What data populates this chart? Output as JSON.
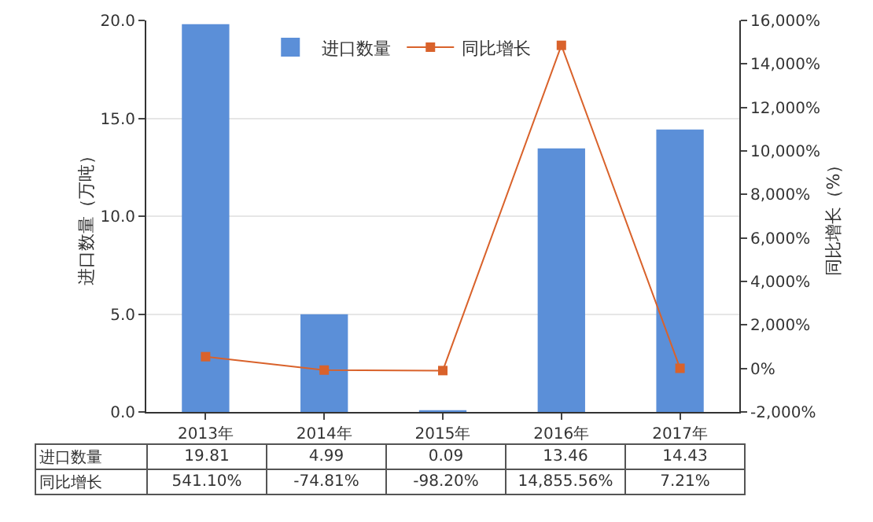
{
  "chart_data": {
    "type": "bar",
    "categories": [
      "2013年",
      "2014年",
      "2015年",
      "2016年",
      "2017年"
    ],
    "series": [
      {
        "name": "进口数量",
        "color": "#5b8fd8",
        "values": [
          19.81,
          4.99,
          0.09,
          13.46,
          14.43
        ],
        "value_labels": [
          "19.81",
          "4.99",
          "0.09",
          "13.46",
          "14.43"
        ]
      },
      {
        "name": "同比增长",
        "type": "line",
        "axis": "y2",
        "color": "#d9622b",
        "marker": "square",
        "line_style": "solid",
        "values": [
          541.1,
          -74.81,
          -98.2,
          14855.56,
          7.21
        ],
        "value_labels": [
          "541.10%",
          "-74.81%",
          "-98.20%",
          "14,855.56%",
          "7.21%"
        ]
      }
    ],
    "ylabel": "进口数量（万吨）",
    "y2label": "同比增长（%）",
    "ylim": [
      0,
      20
    ],
    "yticks": [
      {
        "value": 0,
        "label": "0.0"
      },
      {
        "value": 5,
        "label": "5.0"
      },
      {
        "value": 10,
        "label": "10.0"
      },
      {
        "value": 15,
        "label": "15.0"
      },
      {
        "value": 20,
        "label": "20.0"
      }
    ],
    "y2lim": [
      -2000,
      16000
    ],
    "y2ticks": [
      {
        "value": -2000,
        "label": "-2,000%"
      },
      {
        "value": 0,
        "label": "0%"
      },
      {
        "value": 2000,
        "label": "2,000%"
      },
      {
        "value": 4000,
        "label": "4,000%"
      },
      {
        "value": 6000,
        "label": "6,000%"
      },
      {
        "value": 8000,
        "label": "8,000%"
      },
      {
        "value": 10000,
        "label": "10,000%"
      },
      {
        "value": 12000,
        "label": "12,000%"
      },
      {
        "value": 14000,
        "label": "14,000%"
      },
      {
        "value": 16000,
        "label": "16,000%"
      }
    ],
    "grid": "y",
    "legend": "top"
  }
}
